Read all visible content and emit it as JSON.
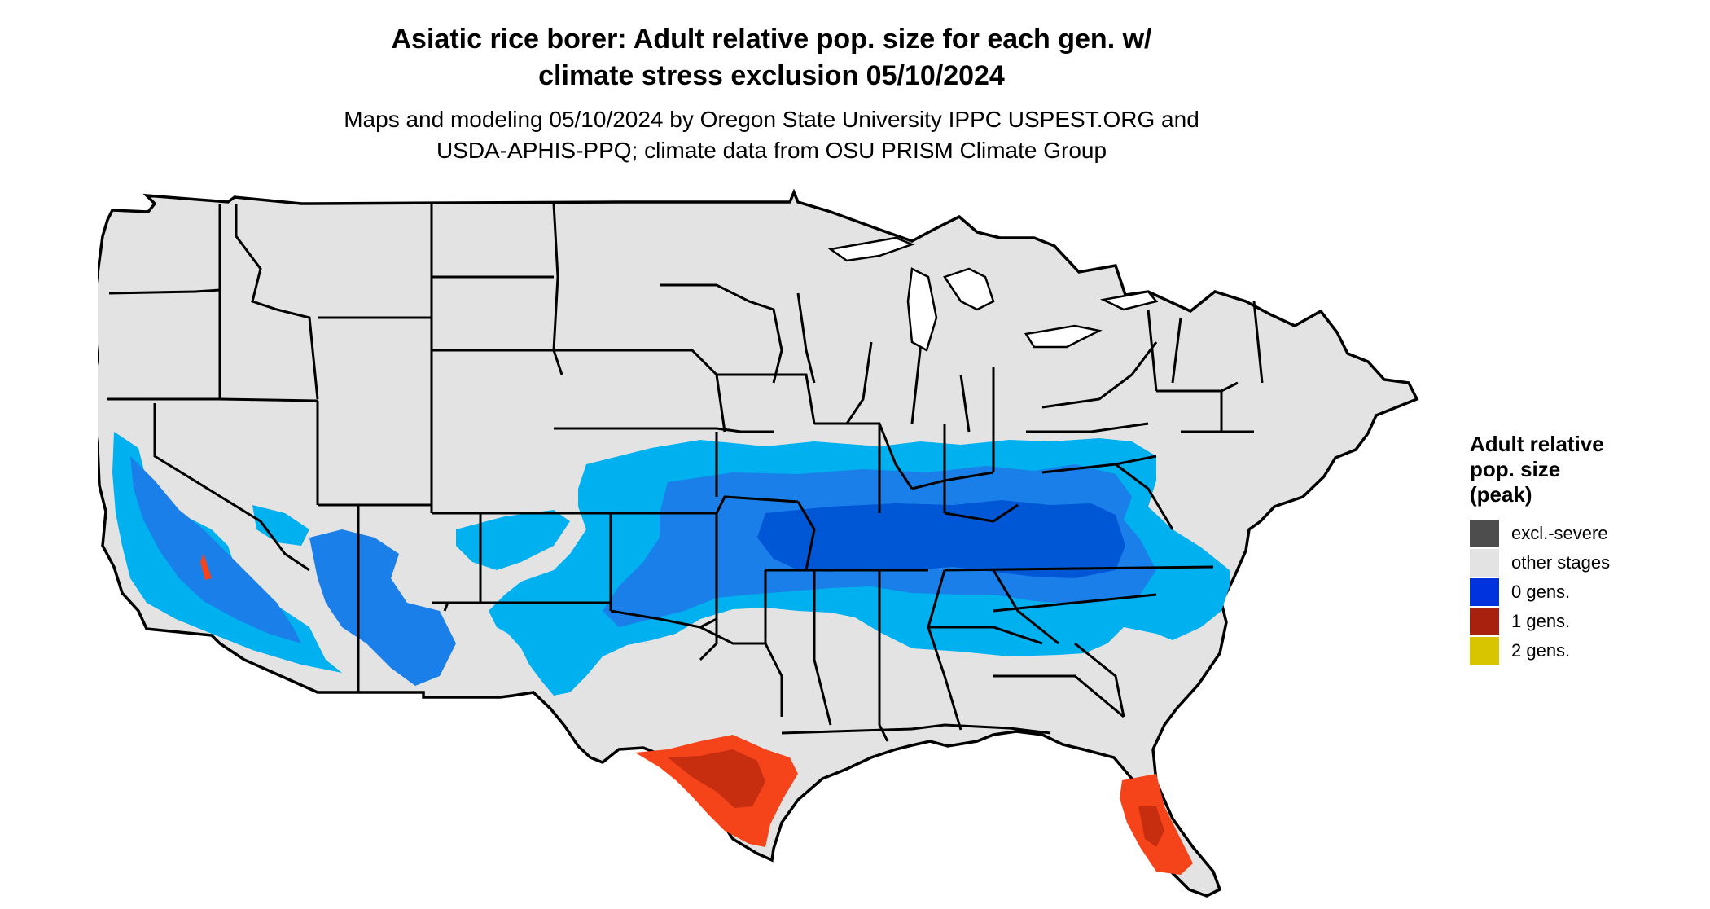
{
  "title_line1": "Asiatic rice borer: Adult relative pop. size for each gen. w/",
  "title_line2": "climate stress exclusion 05/10/2024",
  "subtitle_line1": "Maps and modeling 05/10/2024 by Oregon State University IPPC USPEST.ORG and",
  "subtitle_line2": "USDA-APHIS-PPQ; climate data from OSU PRISM Climate Group",
  "legend": {
    "title_line1": "Adult relative",
    "title_line2": "pop. size",
    "title_line3": "(peak)",
    "items": [
      {
        "label": "excl.-severe",
        "color": "#4d4d4d"
      },
      {
        "label": "other stages",
        "color": "#e3e3e3"
      },
      {
        "label": "0 gens.",
        "color": "#0033dd"
      },
      {
        "label": "1 gens.",
        "color": "#a8200e"
      },
      {
        "label": "2 gens.",
        "color": "#d9c400"
      }
    ]
  },
  "map_colors": {
    "land": "#e3e3e3",
    "border": "#000000",
    "zero_gen_light": "#00b0ef",
    "zero_gen_mid": "#1a7fe8",
    "zero_gen_dark": "#0057d6",
    "one_gen": "#f5431a",
    "one_gen_dark": "#c72e10"
  }
}
